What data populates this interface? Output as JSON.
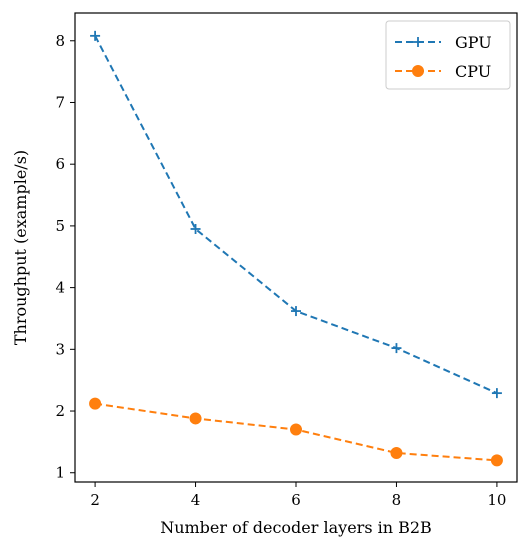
{
  "chart_data": {
    "type": "line",
    "title": "",
    "xlabel": "Number of decoder layers in B2B",
    "ylabel": "Throughput (example/s)",
    "x": [
      2,
      4,
      6,
      8,
      10
    ],
    "xlim": [
      1.6,
      10.4
    ],
    "ylim": [
      0.85,
      8.45
    ],
    "xticks": [
      2,
      4,
      6,
      8,
      10
    ],
    "yticks": [
      1,
      2,
      3,
      4,
      5,
      6,
      7,
      8
    ],
    "grid": false,
    "legend_position": "top-right",
    "series": [
      {
        "name": "GPU",
        "values": [
          8.08,
          4.95,
          3.62,
          3.02,
          2.29
        ],
        "color": "#1f77b4",
        "line_style": "dashed",
        "marker": "plus"
      },
      {
        "name": "CPU",
        "values": [
          2.12,
          1.88,
          1.7,
          1.32,
          1.2
        ],
        "color": "#ff7f0e",
        "line_style": "dashed",
        "marker": "circle"
      }
    ]
  }
}
